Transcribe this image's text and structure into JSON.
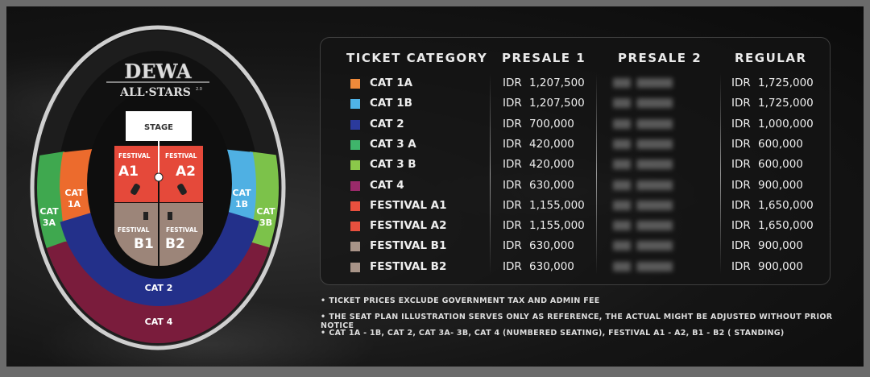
{
  "logo": {
    "line1": "DEWA",
    "line2": "ALL STARS 2.0"
  },
  "seatmap": {
    "stage": "STAGE",
    "festival_a1": {
      "top": "FESTIVAL",
      "big": "A1"
    },
    "festival_a2": {
      "top": "FESTIVAL",
      "big": "A2"
    },
    "festival_b1": {
      "top": "FESTIVAL",
      "big": "B1"
    },
    "festival_b2": {
      "top": "FESTIVAL",
      "big": "B2"
    },
    "cat1a": [
      "CAT",
      "1A"
    ],
    "cat1b": [
      "CAT",
      "1B"
    ],
    "cat3a": [
      "CAT",
      "3A"
    ],
    "cat3b": [
      "CAT",
      "3B"
    ],
    "cat2": "CAT 2",
    "cat4": "CAT 4"
  },
  "table": {
    "headers": [
      "TICKET CATEGORY",
      "PRESALE 1",
      "PRESALE 2",
      "REGULAR"
    ],
    "rows": [
      {
        "category": "CAT 1A",
        "color": "#f08a3a",
        "presale1": "IDR 1,207,500",
        "regular": "IDR 1,725,000"
      },
      {
        "category": "CAT 1B",
        "color": "#4fb3e8",
        "presale1": "IDR 1,207,500",
        "regular": "IDR 1,725,000"
      },
      {
        "category": "CAT 2",
        "color": "#2b3a9c",
        "presale1": "IDR 700,000",
        "regular": "IDR 1,000,000"
      },
      {
        "category": "CAT 3 A",
        "color": "#3fb56b",
        "presale1": "IDR 420,000",
        "regular": "IDR 600,000"
      },
      {
        "category": "CAT 3 B",
        "color": "#8bc84a",
        "presale1": "IDR 420,000",
        "regular": "IDR 600,000"
      },
      {
        "category": "CAT 4",
        "color": "#9a2a6a",
        "presale1": "IDR 630,000",
        "regular": "IDR 900,000"
      },
      {
        "category": "FESTIVAL A1",
        "color": "#e8503e",
        "presale1": "IDR 1,155,000",
        "regular": "IDR 1,650,000"
      },
      {
        "category": "FESTIVAL A2",
        "color": "#e8503e",
        "presale1": "IDR 1,155,000",
        "regular": "IDR 1,650,000"
      },
      {
        "category": "FESTIVAL B1",
        "color": "#a89488",
        "presale1": "IDR 630,000",
        "regular": "IDR 900,000"
      },
      {
        "category": "FESTIVAL B2",
        "color": "#a89488",
        "presale1": "IDR 630,000",
        "regular": "IDR 900,000"
      }
    ]
  },
  "notes": [
    "TICKET PRICES EXCLUDE GOVERNMENT TAX AND ADMIN FEE",
    "THE SEAT PLAN ILLUSTRATION SERVES ONLY AS REFERENCE, THE ACTUAL MIGHT BE ADJUSTED WITHOUT PRIOR NOTICE",
    "CAT 1A - 1B, CAT 2, CAT 3A- 3B, CAT 4 (NUMBERED SEATING), FESTIVAL A1 - A2, B1 - B2 ( STANDING)"
  ]
}
